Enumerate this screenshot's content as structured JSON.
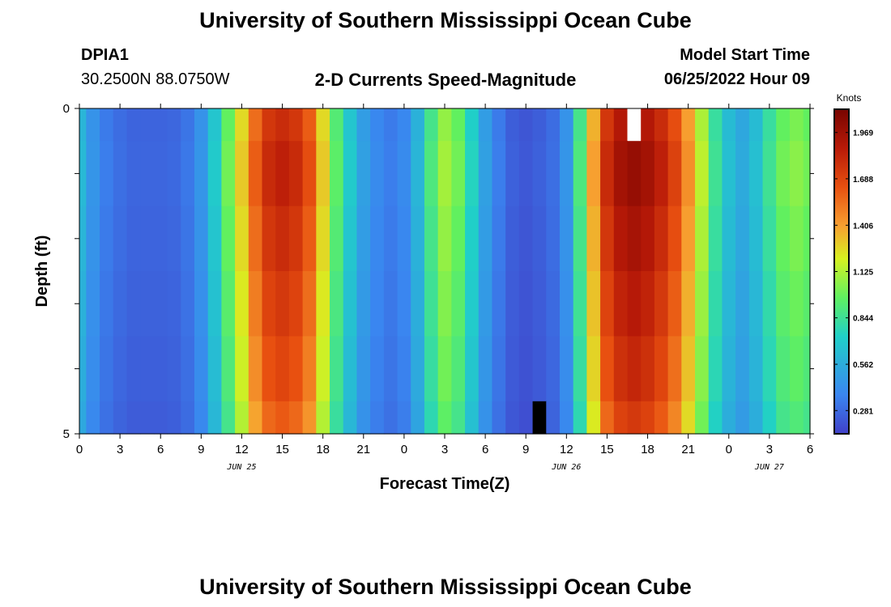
{
  "header": {
    "title": "University of Southern Mississippi Ocean Cube",
    "station": "DPIA1",
    "location": "30.2500N  88.0750W",
    "chart_title": "2-D Currents Speed-Magnitude",
    "model_start_label": "Model Start Time",
    "model_start_value": "06/25/2022 Hour 09"
  },
  "footer": {
    "title": "University of Southern Mississippi Ocean Cube"
  },
  "chart_data": {
    "type": "heatmap",
    "title": "2-D Currents Speed-Magnitude",
    "xlabel": "Forecast Time(Z)",
    "ylabel": "Depth (ft)",
    "colorbar_label": "Knots",
    "colorbar_ticks": [
      "1.969",
      "1.688",
      "1.406",
      "1.125",
      "0.844",
      "0.562",
      "0.281"
    ],
    "colorbar_range": [
      0.14,
      2.11
    ],
    "x_tick_labels": [
      "0",
      "3",
      "6",
      "9",
      "12",
      "15",
      "18",
      "21",
      "0",
      "3",
      "6",
      "9",
      "12",
      "15",
      "18",
      "21",
      "0",
      "3",
      "6"
    ],
    "date_labels": [
      {
        "label": "JUN 25",
        "hour": 12
      },
      {
        "label": "JUN 26",
        "hour": 36
      },
      {
        "label": "JUN 27",
        "hour": 51
      }
    ],
    "y_tick_labels": [
      "0",
      "5"
    ],
    "ylim": [
      0,
      5
    ],
    "x_hours_range": [
      0,
      54
    ],
    "depth_levels": [
      "0-0.5",
      "0.5-1.5",
      "1.5-2.5",
      "2.5-3.5",
      "3.5-4.5",
      "4.5-5"
    ],
    "speed_profile_knots": [
      0.62,
      0.45,
      0.35,
      0.3,
      0.27,
      0.27,
      0.27,
      0.28,
      0.33,
      0.45,
      0.7,
      1.0,
      1.3,
      1.6,
      1.8,
      1.85,
      1.8,
      1.65,
      1.3,
      0.95,
      0.7,
      0.5,
      0.4,
      0.35,
      0.4,
      0.6,
      0.9,
      1.1,
      1.0,
      0.75,
      0.5,
      0.35,
      0.25,
      0.22,
      0.25,
      0.3,
      0.45,
      0.9,
      1.4,
      1.8,
      1.95,
      2.0,
      1.95,
      1.85,
      1.7,
      1.45,
      1.15,
      0.85,
      0.65,
      0.55,
      0.65,
      0.85,
      1.0,
      1.05,
      1.0
    ],
    "depth_factor": [
      0.97,
      1.0,
      0.97,
      0.94,
      0.91,
      0.87
    ],
    "missing_cells": [
      {
        "hour": 41,
        "depth": "0-0.5",
        "color": "#ffffff"
      },
      {
        "hour": 34,
        "depth": "4.5-5",
        "color": "#000000"
      }
    ]
  }
}
